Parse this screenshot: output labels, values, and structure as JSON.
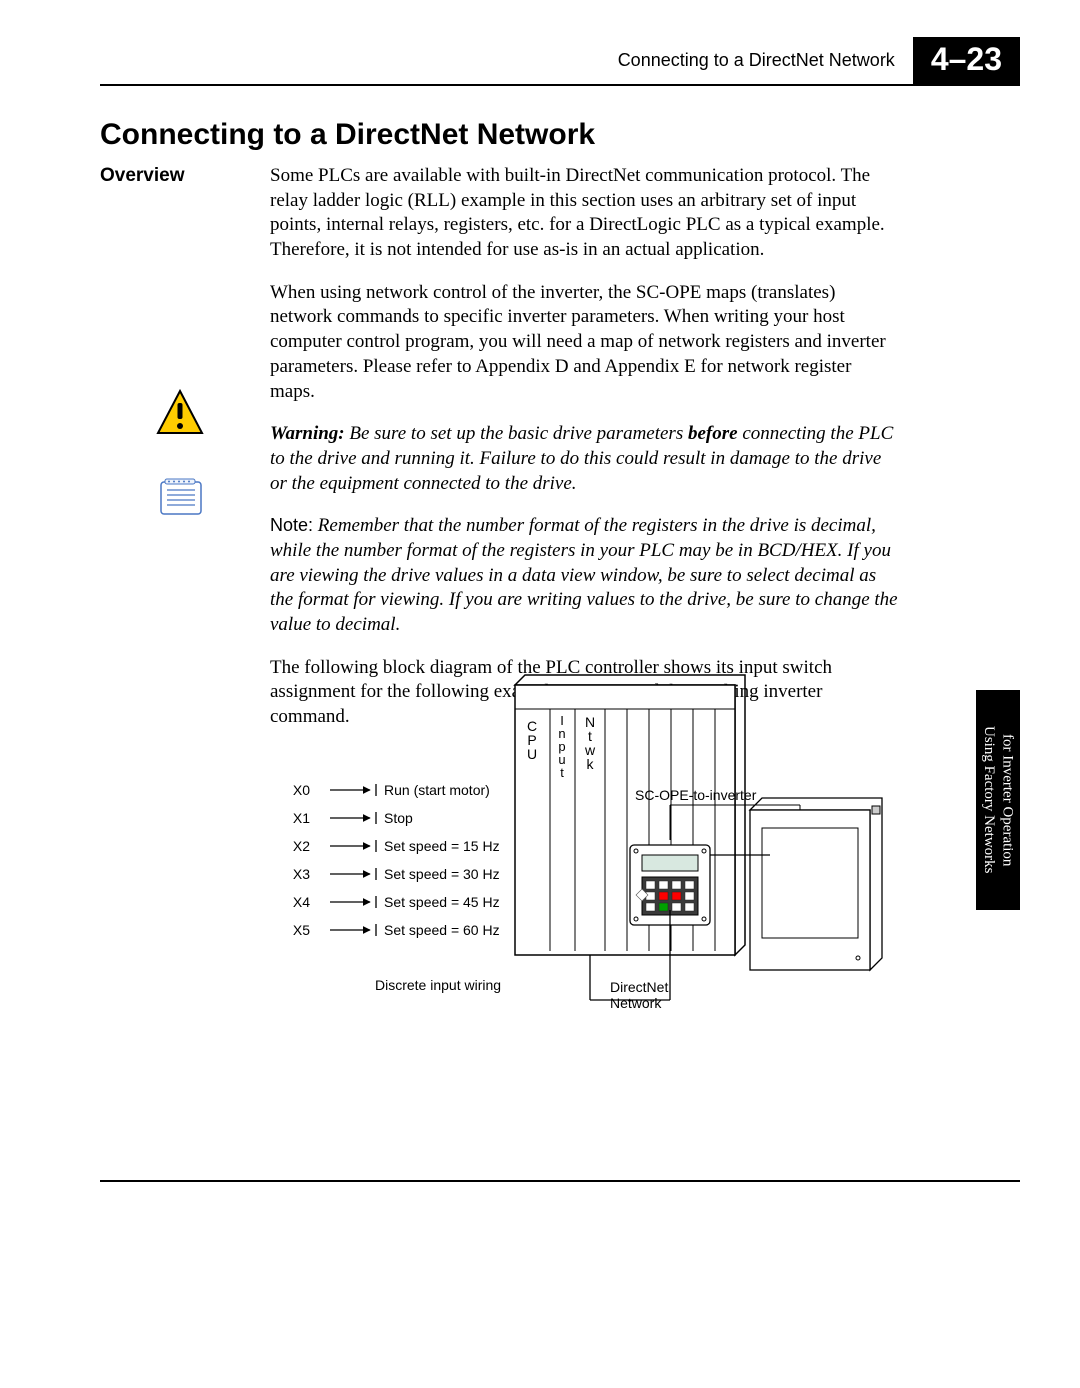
{
  "header": {
    "running_title": "Connecting to a DirectNet Network",
    "page_badge": "4–23"
  },
  "title": "Connecting to a DirectNet Network",
  "section_label": "Overview",
  "paragraphs": {
    "p1": "Some PLCs are available with built-in DirectNet communication protocol. The relay ladder logic (RLL) example in this section uses an arbitrary set of input points, internal relays, registers, etc. for a DirectLogic PLC as a typical example. Therefore, it is not intended for use as-is in an actual application.",
    "p2": "When using network control of the inverter, the SC-OPE maps (translates) network commands to specific inverter parameters. When writing your host computer control program, you will need a map of network registers and inverter parameters. Please refer to Appendix D and Appendix E for network register maps.",
    "warn_lead": "Warning:",
    "warn_pre": " Be sure to set up the basic drive parameters ",
    "warn_bold": "before",
    "warn_post": " connecting the PLC to the drive and running it. Failure to do this could result in damage to the drive or the equipment connected to the drive.",
    "note_lead": "Note:",
    "note_body": " Remember that the number format of the registers in the drive is decimal, while the number format of the registers in your PLC may be in BCD/HEX. If you are viewing the drive values in a data view window, be sure to select decimal as the format for viewing. If you are writing values to the drive, be sure to change the value to decimal.",
    "p5": "The following block diagram of the PLC controller shows its input switch assignment for the following example program and the resulting inverter command."
  },
  "side_tab": {
    "line1": "Using Factory Networks",
    "line2": "for Inverter Operation"
  },
  "diagram": {
    "inputs": [
      {
        "id": "X0",
        "label": "Run (start motor)"
      },
      {
        "id": "X1",
        "label": "Stop"
      },
      {
        "id": "X2",
        "label": "Set speed = 15 Hz"
      },
      {
        "id": "X3",
        "label": "Set speed = 30 Hz"
      },
      {
        "id": "X4",
        "label": "Set speed = 45 Hz"
      },
      {
        "id": "X5",
        "label": "Set speed = 60 Hz"
      }
    ],
    "box_labels": {
      "cpu": "C\nP\nU",
      "input": "I\nn\np\nu\nt",
      "ntwk": "N\nt\nw\nk"
    },
    "captions": {
      "discrete": "Discrete input wiring",
      "dnet1": "DirectNet",
      "dnet2": "Network",
      "scope": "SC-OPE-to-inverter"
    },
    "colors": {
      "stroke": "#000000",
      "keypad_bg": "#3a3a3a",
      "led_red": "#ff0000",
      "led_green": "#00a000",
      "display_bg": "#d8e8e0",
      "warn_yellow": "#ffcc00",
      "note_blue": "#4a77c4"
    },
    "font_sizes": {
      "input_label": 14,
      "caption": 14,
      "box_label": 14
    }
  }
}
